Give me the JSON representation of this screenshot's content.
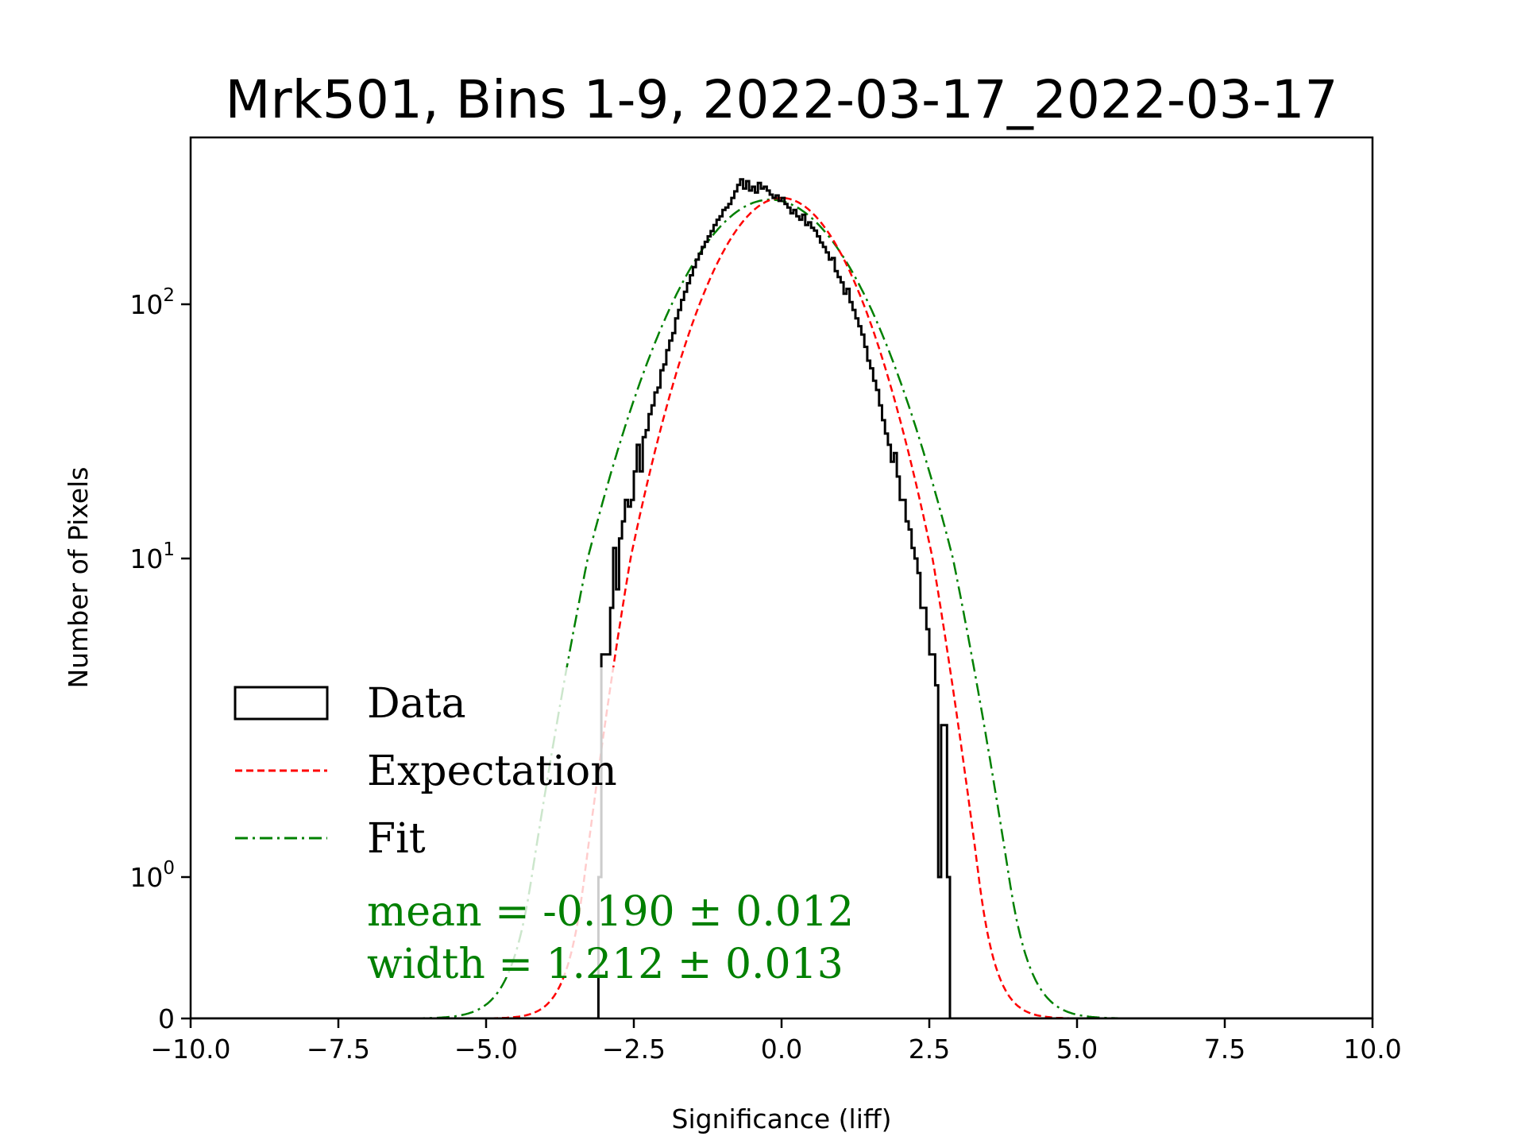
{
  "chart_data": {
    "type": "histogram",
    "title": "Mrk501, Bins 1-9, 2022-03-17_2022-03-17",
    "xlabel": "Significance (liff)",
    "ylabel": "Number of Pixels",
    "xlim": [
      -10,
      10
    ],
    "yscale": "symlog",
    "ylim": [
      0,
      450
    ],
    "grid": false,
    "x_ticks": [
      {
        "value": -10,
        "label": "−10.0"
      },
      {
        "value": -7.5,
        "label": "−7.5"
      },
      {
        "value": -5,
        "label": "−5.0"
      },
      {
        "value": -2.5,
        "label": "−2.5"
      },
      {
        "value": 0,
        "label": "0.0"
      },
      {
        "value": 2.5,
        "label": "2.5"
      },
      {
        "value": 5,
        "label": "5.0"
      },
      {
        "value": 7.5,
        "label": "7.5"
      },
      {
        "value": 10,
        "label": "10.0"
      }
    ],
    "y_ticks": [
      {
        "value": 0,
        "base": "0",
        "exp": ""
      },
      {
        "value": 1,
        "base": "10",
        "exp": "0"
      },
      {
        "value": 10,
        "base": "10",
        "exp": "1"
      },
      {
        "value": 100,
        "base": "10",
        "exp": "2"
      }
    ],
    "legend": {
      "placement": "lower-left",
      "entries": [
        {
          "label": "Data",
          "style": "step",
          "color": "#000000"
        },
        {
          "label": "Expectation",
          "style": "dashed",
          "color": "#ff0000"
        },
        {
          "label": "Fit",
          "style": "dashdot",
          "color": "#008000"
        }
      ]
    },
    "annotations": [
      "mean = -0.190 ± 0.012",
      "width = 1.212 ± 0.013"
    ],
    "expectation": {
      "mean": 0.0,
      "sigma": 1.0,
      "amplitude": 262,
      "color": "#ff0000"
    },
    "fit": {
      "mean": -0.19,
      "sigma": 1.212,
      "amplitude": 258,
      "color": "#008000"
    },
    "histogram": {
      "color": "#000000",
      "bin_start": -3.1,
      "bin_width": 0.05,
      "counts": [
        1,
        5,
        5,
        5,
        7,
        11,
        8,
        12,
        14,
        17,
        16,
        17,
        22,
        28,
        22,
        30,
        32,
        37,
        40,
        45,
        47,
        55,
        58,
        66,
        72,
        77,
        88,
        95,
        104,
        112,
        121,
        130,
        140,
        150,
        158,
        168,
        176,
        185,
        194,
        205,
        215,
        222,
        235,
        240,
        248,
        262,
        278,
        295,
        310,
        285,
        305,
        280,
        290,
        275,
        300,
        285,
        290,
        280,
        270,
        262,
        268,
        255,
        262,
        248,
        240,
        228,
        235,
        222,
        215,
        225,
        205,
        210,
        200,
        195,
        185,
        175,
        168,
        160,
        150,
        152,
        135,
        128,
        122,
        110,
        115,
        102,
        95,
        88,
        82,
        76,
        68,
        60,
        56,
        50,
        46,
        40,
        35,
        31,
        28,
        24,
        26,
        21,
        17,
        17,
        14,
        13,
        11,
        10,
        9,
        7,
        7,
        6,
        5,
        5,
        4,
        1,
        3,
        3,
        1,
        0,
        0,
        0,
        0,
        0,
        0
      ]
    }
  }
}
